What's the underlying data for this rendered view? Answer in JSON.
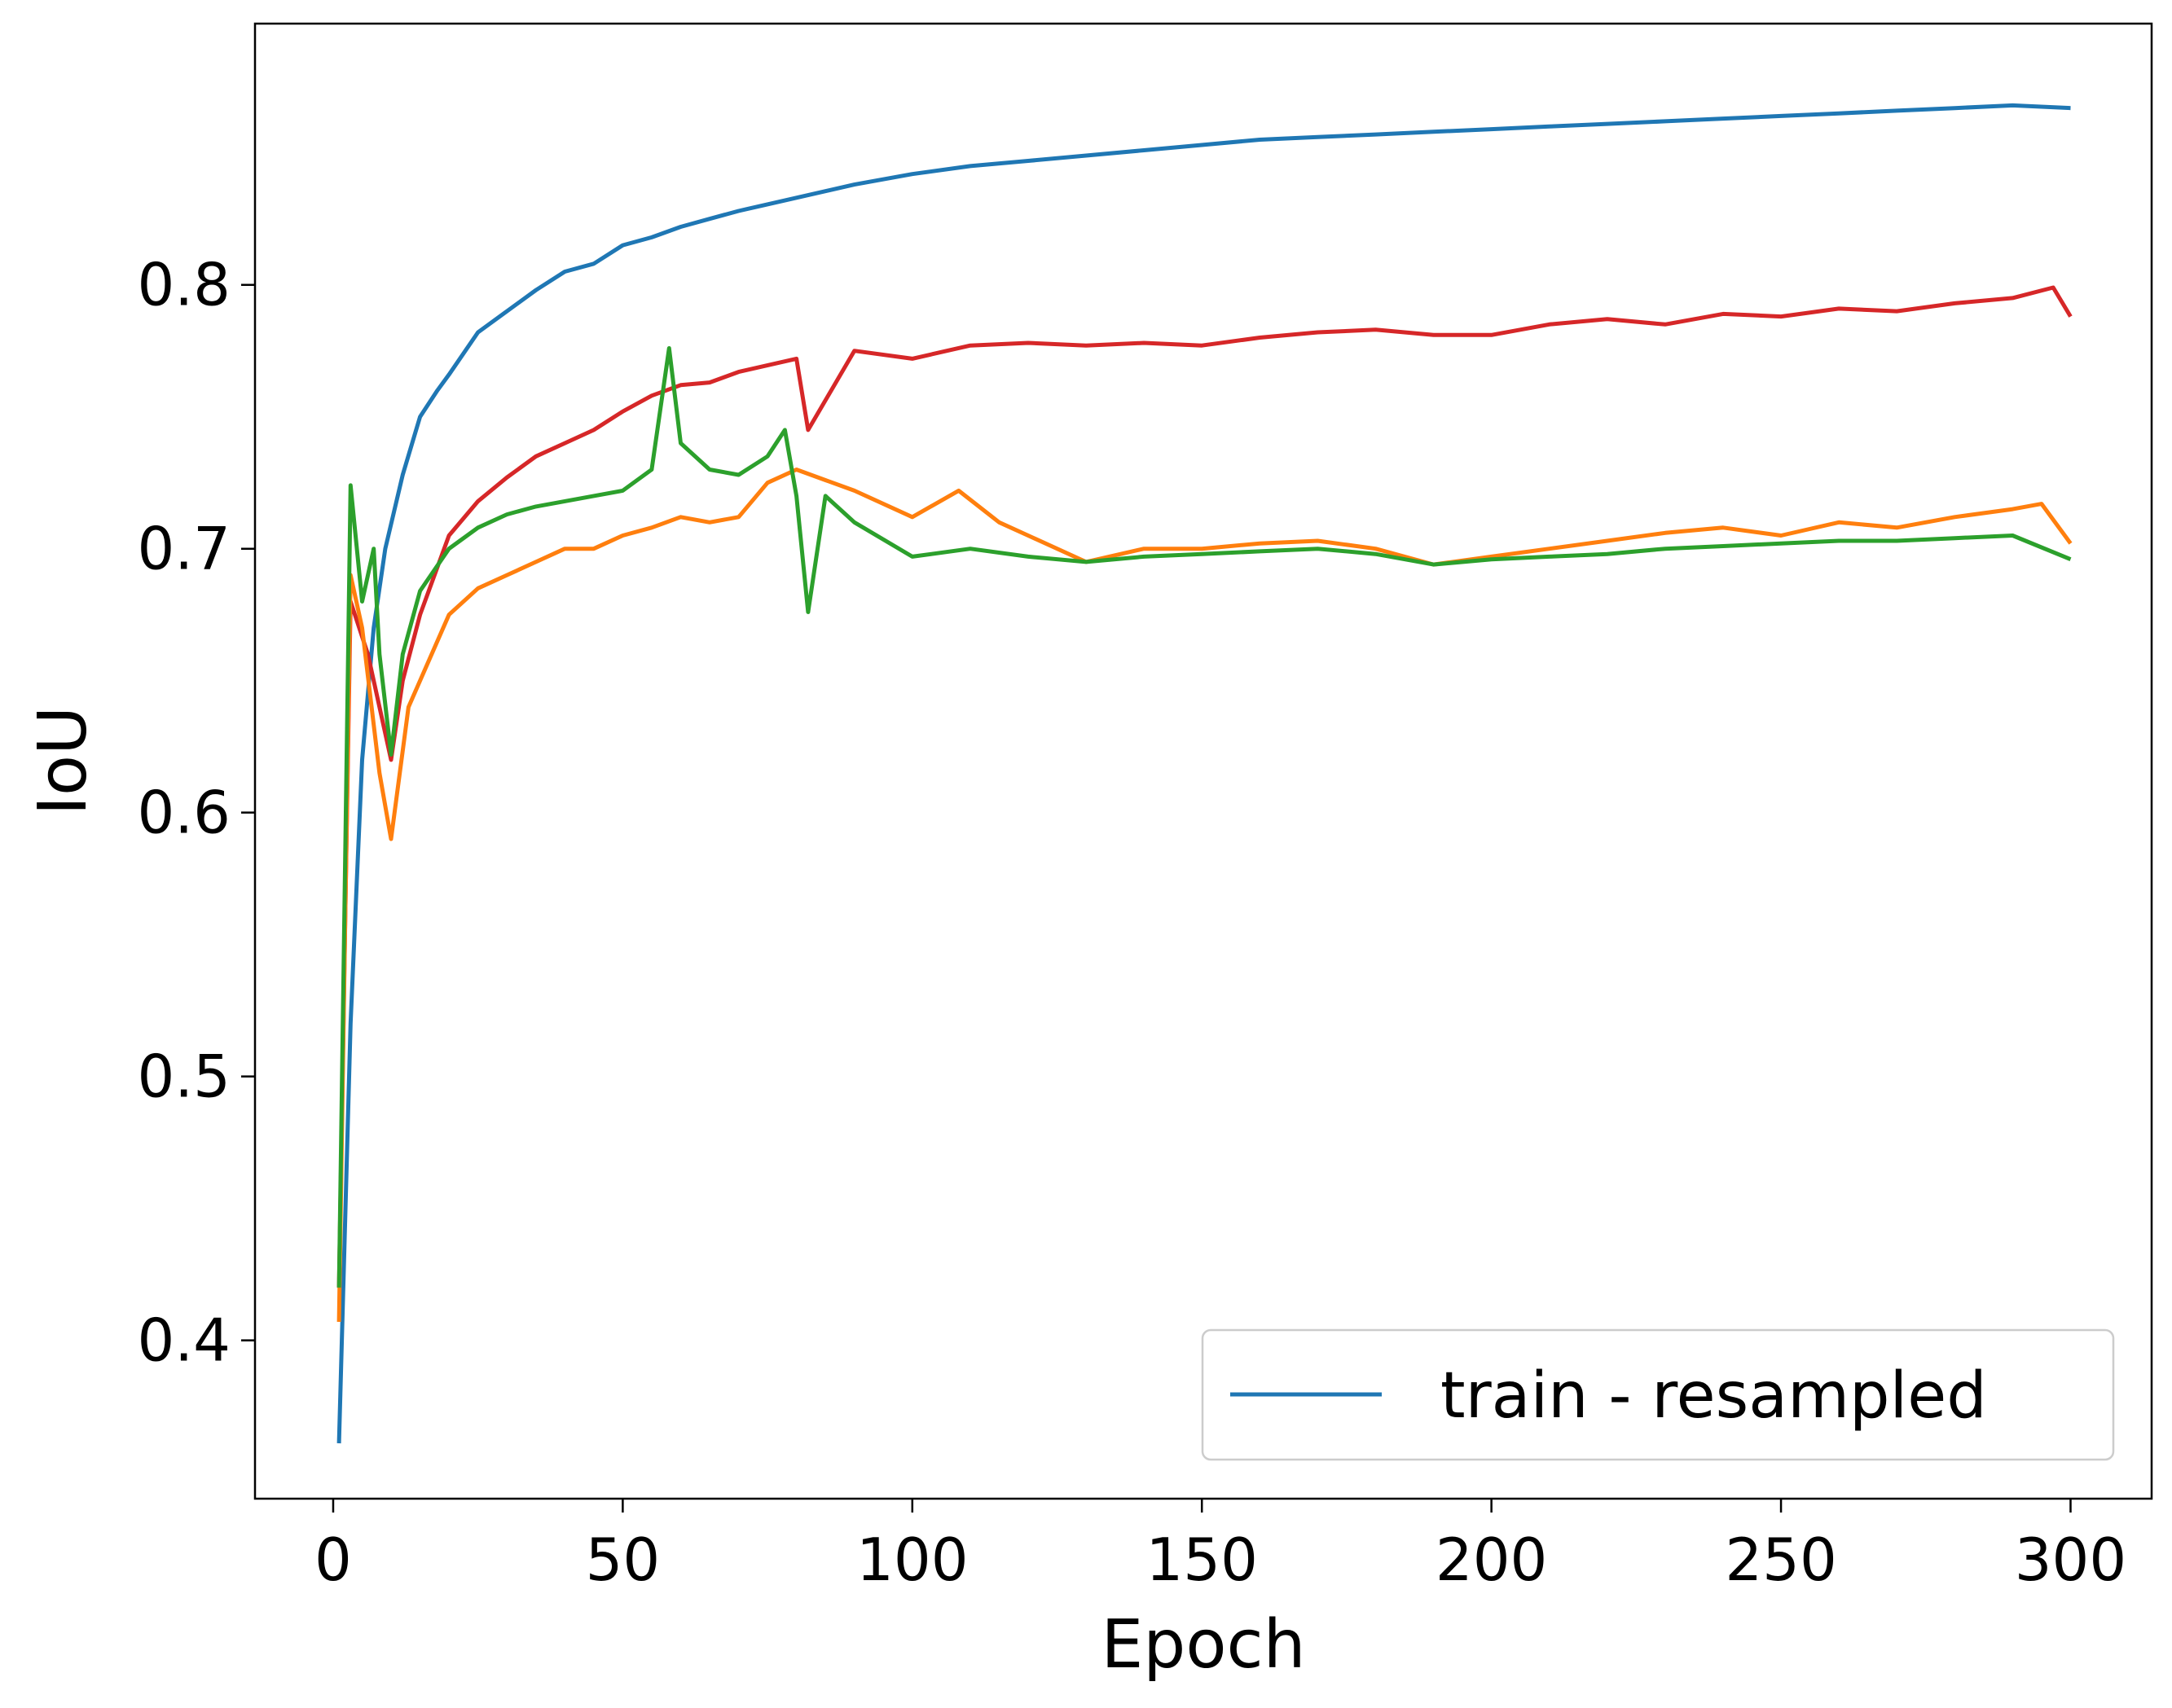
{
  "chart_data": {
    "type": "line",
    "xlabel": "Epoch",
    "ylabel": "IoU",
    "xlim": [
      -13.5,
      314
    ],
    "ylim": [
      0.34,
      0.899
    ],
    "xticks": [
      0,
      50,
      100,
      150,
      200,
      250,
      300
    ],
    "yticks": [
      0.4,
      0.5,
      0.6,
      0.7,
      0.8
    ],
    "grid": false,
    "legend": {
      "position": "bottom-right",
      "entries": [
        {
          "label": "train - resampled",
          "color": "#1f77b4"
        }
      ]
    },
    "series": [
      {
        "name": "train - resampled",
        "color": "#1f77b4",
        "x": [
          1,
          3,
          5,
          7,
          9,
          12,
          15,
          18,
          20,
          25,
          30,
          35,
          40,
          45,
          50,
          55,
          60,
          65,
          70,
          80,
          90,
          100,
          110,
          120,
          130,
          140,
          150,
          160,
          170,
          180,
          190,
          200,
          210,
          220,
          230,
          240,
          250,
          260,
          270,
          280,
          290,
          300
        ],
        "y": [
          0.361,
          0.52,
          0.62,
          0.67,
          0.7,
          0.728,
          0.75,
          0.76,
          0.766,
          0.782,
          0.79,
          0.798,
          0.805,
          0.808,
          0.815,
          0.818,
          0.822,
          0.825,
          0.828,
          0.833,
          0.838,
          0.842,
          0.845,
          0.847,
          0.849,
          0.851,
          0.853,
          0.855,
          0.856,
          0.857,
          0.858,
          0.859,
          0.86,
          0.861,
          0.862,
          0.863,
          0.864,
          0.865,
          0.866,
          0.867,
          0.868,
          0.867
        ]
      },
      {
        "color": "#d62728",
        "x": [
          1,
          3,
          6,
          9,
          10,
          12,
          15,
          20,
          25,
          30,
          35,
          40,
          45,
          50,
          55,
          60,
          65,
          70,
          80,
          82,
          90,
          100,
          110,
          120,
          130,
          140,
          150,
          160,
          170,
          180,
          190,
          200,
          210,
          220,
          230,
          240,
          250,
          260,
          270,
          280,
          290,
          297,
          300
        ],
        "y": [
          0.42,
          0.68,
          0.66,
          0.63,
          0.62,
          0.65,
          0.675,
          0.705,
          0.718,
          0.727,
          0.735,
          0.74,
          0.745,
          0.752,
          0.758,
          0.762,
          0.763,
          0.767,
          0.772,
          0.745,
          0.775,
          0.772,
          0.777,
          0.778,
          0.777,
          0.778,
          0.777,
          0.78,
          0.782,
          0.783,
          0.781,
          0.781,
          0.785,
          0.787,
          0.785,
          0.789,
          0.788,
          0.791,
          0.79,
          0.793,
          0.795,
          0.799,
          0.788
        ]
      },
      {
        "color": "#ff7f0e",
        "x": [
          1,
          3,
          5,
          8,
          10,
          13,
          16,
          20,
          25,
          30,
          35,
          40,
          45,
          50,
          55,
          60,
          65,
          70,
          75,
          80,
          85,
          90,
          100,
          108,
          115,
          120,
          130,
          140,
          150,
          160,
          170,
          180,
          190,
          200,
          210,
          220,
          230,
          240,
          250,
          260,
          270,
          280,
          290,
          295,
          300
        ],
        "y": [
          0.407,
          0.69,
          0.67,
          0.615,
          0.59,
          0.64,
          0.655,
          0.675,
          0.685,
          0.69,
          0.695,
          0.7,
          0.7,
          0.705,
          0.708,
          0.712,
          0.71,
          0.712,
          0.725,
          0.73,
          0.726,
          0.722,
          0.712,
          0.722,
          0.71,
          0.705,
          0.695,
          0.7,
          0.7,
          0.702,
          0.703,
          0.7,
          0.694,
          0.697,
          0.7,
          0.703,
          0.706,
          0.708,
          0.705,
          0.71,
          0.708,
          0.712,
          0.715,
          0.717,
          0.702
        ]
      },
      {
        "color": "#2ca02c",
        "x": [
          1,
          3,
          5,
          7,
          8,
          10,
          12,
          15,
          20,
          25,
          30,
          35,
          40,
          45,
          50,
          55,
          58,
          60,
          65,
          70,
          75,
          78,
          80,
          82,
          85,
          90,
          100,
          110,
          120,
          130,
          140,
          150,
          160,
          170,
          180,
          190,
          200,
          210,
          220,
          230,
          240,
          250,
          260,
          270,
          280,
          290,
          300
        ],
        "y": [
          0.42,
          0.724,
          0.68,
          0.7,
          0.66,
          0.622,
          0.66,
          0.684,
          0.7,
          0.708,
          0.713,
          0.716,
          0.718,
          0.72,
          0.722,
          0.73,
          0.776,
          0.74,
          0.73,
          0.728,
          0.735,
          0.745,
          0.72,
          0.676,
          0.72,
          0.71,
          0.697,
          0.7,
          0.697,
          0.695,
          0.697,
          0.698,
          0.699,
          0.7,
          0.698,
          0.694,
          0.696,
          0.697,
          0.698,
          0.7,
          0.701,
          0.702,
          0.703,
          0.703,
          0.704,
          0.705,
          0.696
        ]
      }
    ]
  }
}
